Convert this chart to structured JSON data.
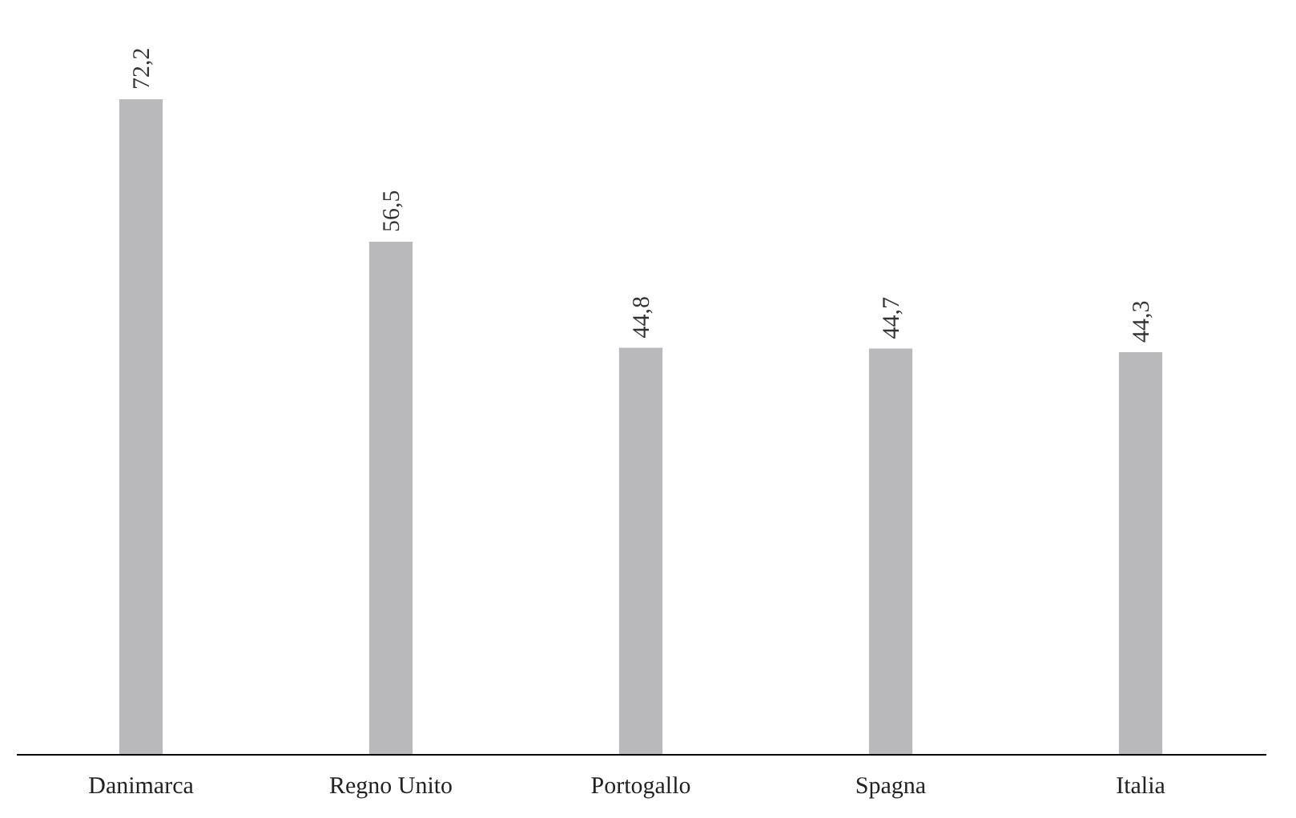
{
  "chart_data": {
    "type": "bar",
    "categories": [
      "Danimarca",
      "Regno Unito",
      "Portogallo",
      "Spagna",
      "Italia"
    ],
    "values": [
      72.2,
      56.5,
      44.8,
      44.7,
      44.3
    ],
    "value_labels": [
      "72,2",
      "56,5",
      "44,8",
      "44,7",
      "44,3"
    ],
    "color": "#b9b9bb"
  }
}
